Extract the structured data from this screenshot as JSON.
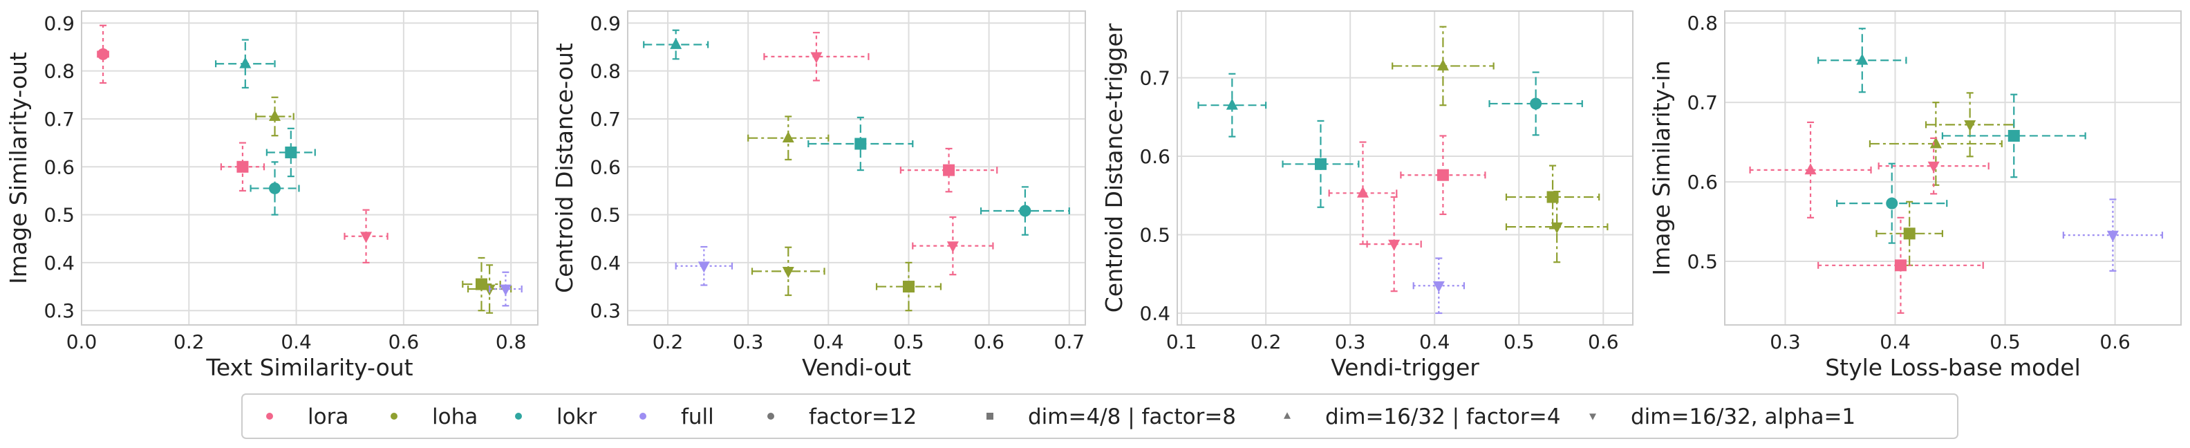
{
  "colors": {
    "lora": "#f2668b",
    "loha": "#8fa030",
    "lokr": "#2fa6a0",
    "full": "#9d8ef2",
    "factor": "#777777"
  },
  "legend": {
    "methods": [
      {
        "key": "lora",
        "label": "lora"
      },
      {
        "key": "loha",
        "label": "loha"
      },
      {
        "key": "lokr",
        "label": "lokr"
      },
      {
        "key": "full",
        "label": "full"
      }
    ],
    "configs": [
      {
        "key": "factor12",
        "label": "factor=12",
        "marker": "circle"
      },
      {
        "key": "dim48",
        "label": "dim=4/8 | factor=8",
        "marker": "square"
      },
      {
        "key": "dim1632",
        "label": "dim=16/32 | factor=4",
        "marker": "triangle-up"
      },
      {
        "key": "alpha1",
        "label": "dim=16/32, alpha=1",
        "marker": "triangle-down"
      }
    ]
  },
  "chart_data": [
    {
      "type": "scatter",
      "xlabel": "Text Similarity-out",
      "ylabel": "Image Similarity-out",
      "xlim": [
        0.0,
        0.85
      ],
      "ylim": [
        0.27,
        0.925
      ],
      "xticks": [
        "0.0",
        "0.2",
        "0.4",
        "0.6",
        "0.8"
      ],
      "yticks": [
        "0.3",
        "0.4",
        "0.5",
        "0.6",
        "0.7",
        "0.8",
        "0.9"
      ],
      "points": [
        {
          "method": "lora",
          "config": "factor12",
          "x": 0.04,
          "y": 0.835,
          "xerr": 0.01,
          "yerr": 0.06
        },
        {
          "method": "lora",
          "config": "dim48",
          "x": 0.3,
          "y": 0.6,
          "xerr": 0.04,
          "yerr": 0.05
        },
        {
          "method": "lora",
          "config": "alpha1",
          "x": 0.53,
          "y": 0.455,
          "xerr": 0.04,
          "yerr": 0.055
        },
        {
          "method": "lokr",
          "config": "dim1632",
          "x": 0.305,
          "y": 0.815,
          "xerr": 0.055,
          "yerr": 0.05
        },
        {
          "method": "loha",
          "config": "dim1632",
          "x": 0.36,
          "y": 0.705,
          "xerr": 0.035,
          "yerr": 0.04
        },
        {
          "method": "lokr",
          "config": "dim48",
          "x": 0.39,
          "y": 0.63,
          "xerr": 0.045,
          "yerr": 0.05
        },
        {
          "method": "lokr",
          "config": "factor12",
          "x": 0.36,
          "y": 0.555,
          "xerr": 0.045,
          "yerr": 0.055
        },
        {
          "method": "loha",
          "config": "dim48",
          "x": 0.745,
          "y": 0.355,
          "xerr": 0.035,
          "yerr": 0.055
        },
        {
          "method": "loha",
          "config": "alpha1",
          "x": 0.76,
          "y": 0.345,
          "xerr": 0.04,
          "yerr": 0.05
        },
        {
          "method": "full",
          "config": "alpha1",
          "x": 0.79,
          "y": 0.345,
          "xerr": 0.03,
          "yerr": 0.035
        }
      ]
    },
    {
      "type": "scatter",
      "xlabel": "Vendi-out",
      "ylabel": "Centroid Distance-out",
      "xlim": [
        0.15,
        0.72
      ],
      "ylim": [
        0.27,
        0.925
      ],
      "xticks": [
        "0.2",
        "0.3",
        "0.4",
        "0.5",
        "0.6",
        "0.7"
      ],
      "yticks": [
        "0.3",
        "0.4",
        "0.5",
        "0.6",
        "0.7",
        "0.8",
        "0.9"
      ],
      "points": [
        {
          "method": "lokr",
          "config": "dim1632",
          "x": 0.21,
          "y": 0.855,
          "xerr": 0.04,
          "yerr": 0.03
        },
        {
          "method": "lora",
          "config": "alpha1",
          "x": 0.385,
          "y": 0.83,
          "xerr": 0.065,
          "yerr": 0.05
        },
        {
          "method": "loha",
          "config": "dim1632",
          "x": 0.35,
          "y": 0.66,
          "xerr": 0.05,
          "yerr": 0.045
        },
        {
          "method": "lokr",
          "config": "dim48",
          "x": 0.44,
          "y": 0.648,
          "xerr": 0.065,
          "yerr": 0.055
        },
        {
          "method": "lora",
          "config": "dim48",
          "x": 0.55,
          "y": 0.593,
          "xerr": 0.06,
          "yerr": 0.045
        },
        {
          "method": "lokr",
          "config": "factor12",
          "x": 0.645,
          "y": 0.508,
          "xerr": 0.055,
          "yerr": 0.05
        },
        {
          "method": "lora",
          "config": "alpha1",
          "x": 0.555,
          "y": 0.435,
          "xerr": 0.05,
          "yerr": 0.06
        },
        {
          "method": "full",
          "config": "alpha1",
          "x": 0.245,
          "y": 0.393,
          "xerr": 0.035,
          "yerr": 0.04
        },
        {
          "method": "loha",
          "config": "alpha1",
          "x": 0.35,
          "y": 0.382,
          "xerr": 0.045,
          "yerr": 0.05
        },
        {
          "method": "loha",
          "config": "dim48",
          "x": 0.5,
          "y": 0.35,
          "xerr": 0.04,
          "yerr": 0.05
        }
      ]
    },
    {
      "type": "scatter",
      "xlabel": "Vendi-trigger",
      "ylabel": "Centroid Distance-trigger",
      "xlim": [
        0.095,
        0.635
      ],
      "ylim": [
        0.385,
        0.785
      ],
      "xticks": [
        "0.1",
        "0.2",
        "0.3",
        "0.4",
        "0.5",
        "0.6"
      ],
      "yticks": [
        "0.4",
        "0.5",
        "0.6",
        "0.7"
      ],
      "points": [
        {
          "method": "lokr",
          "config": "dim1632",
          "x": 0.16,
          "y": 0.665,
          "xerr": 0.04,
          "yerr": 0.04
        },
        {
          "method": "loha",
          "config": "dim1632",
          "x": 0.41,
          "y": 0.715,
          "xerr": 0.06,
          "yerr": 0.05
        },
        {
          "method": "lokr",
          "config": "factor12",
          "x": 0.52,
          "y": 0.667,
          "xerr": 0.055,
          "yerr": 0.04
        },
        {
          "method": "lokr",
          "config": "dim48",
          "x": 0.265,
          "y": 0.59,
          "xerr": 0.045,
          "yerr": 0.055
        },
        {
          "method": "lora",
          "config": "dim1632",
          "x": 0.315,
          "y": 0.553,
          "xerr": 0.04,
          "yerr": 0.065
        },
        {
          "method": "lora",
          "config": "dim48",
          "x": 0.41,
          "y": 0.576,
          "xerr": 0.05,
          "yerr": 0.05
        },
        {
          "method": "loha",
          "config": "dim48",
          "x": 0.54,
          "y": 0.548,
          "xerr": 0.055,
          "yerr": 0.04
        },
        {
          "method": "loha",
          "config": "alpha1",
          "x": 0.545,
          "y": 0.51,
          "xerr": 0.06,
          "yerr": 0.045
        },
        {
          "method": "lora",
          "config": "alpha1",
          "x": 0.352,
          "y": 0.488,
          "xerr": 0.032,
          "yerr": 0.06
        },
        {
          "method": "full",
          "config": "alpha1",
          "x": 0.405,
          "y": 0.435,
          "xerr": 0.03,
          "yerr": 0.035
        }
      ]
    },
    {
      "type": "scatter",
      "xlabel": "Style Loss-base model",
      "ylabel": "Image Similarity-in",
      "xlim": [
        0.245,
        0.66
      ],
      "ylim": [
        0.42,
        0.815
      ],
      "xticks": [
        "0.3",
        "0.4",
        "0.5",
        "0.6"
      ],
      "yticks": [
        "0.5",
        "0.6",
        "0.7",
        "0.8"
      ],
      "points": [
        {
          "method": "lokr",
          "config": "dim1632",
          "x": 0.37,
          "y": 0.753,
          "xerr": 0.04,
          "yerr": 0.04
        },
        {
          "method": "loha",
          "config": "alpha1",
          "x": 0.468,
          "y": 0.672,
          "xerr": 0.04,
          "yerr": 0.04
        },
        {
          "method": "lokr",
          "config": "dim48",
          "x": 0.508,
          "y": 0.658,
          "xerr": 0.065,
          "yerr": 0.052
        },
        {
          "method": "loha",
          "config": "dim1632",
          "x": 0.437,
          "y": 0.648,
          "xerr": 0.06,
          "yerr": 0.052
        },
        {
          "method": "lora",
          "config": "alpha1",
          "x": 0.435,
          "y": 0.62,
          "xerr": 0.05,
          "yerr": 0.035
        },
        {
          "method": "lora",
          "config": "dim1632",
          "x": 0.323,
          "y": 0.615,
          "xerr": 0.055,
          "yerr": 0.06
        },
        {
          "method": "lokr",
          "config": "factor12",
          "x": 0.397,
          "y": 0.573,
          "xerr": 0.05,
          "yerr": 0.05
        },
        {
          "method": "loha",
          "config": "dim48",
          "x": 0.413,
          "y": 0.535,
          "xerr": 0.03,
          "yerr": 0.04
        },
        {
          "method": "full",
          "config": "alpha1",
          "x": 0.598,
          "y": 0.533,
          "xerr": 0.045,
          "yerr": 0.045
        },
        {
          "method": "lora",
          "config": "dim48",
          "x": 0.405,
          "y": 0.495,
          "xerr": 0.075,
          "yerr": 0.06
        }
      ]
    }
  ]
}
